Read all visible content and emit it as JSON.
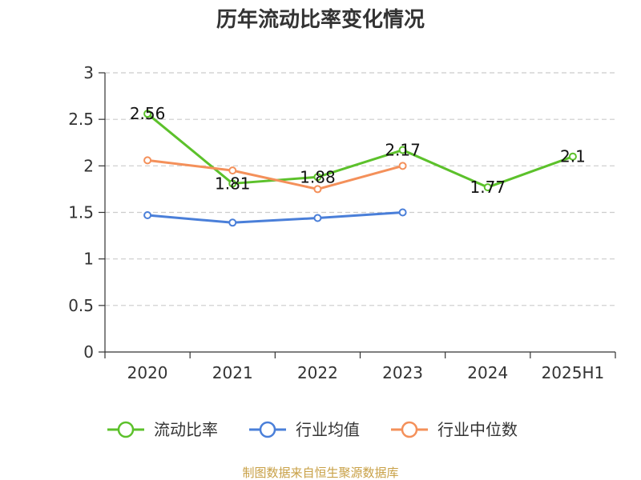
{
  "chart_data": {
    "type": "line",
    "title": "历年流动比率变化情况",
    "categories": [
      "2020",
      "2021",
      "2022",
      "2023",
      "2024",
      "2025H1"
    ],
    "ylim": [
      0,
      3
    ],
    "yticks": [
      "0",
      "0.5",
      "1",
      "1.5",
      "2",
      "2.5",
      "3"
    ],
    "grid": true,
    "legend_position": "bottom",
    "series": [
      {
        "name": "流动比率",
        "color": "#5cc12b",
        "values": [
          2.56,
          1.81,
          1.88,
          2.17,
          1.77,
          2.1
        ],
        "labels": [
          "2.56",
          "1.81",
          "1.88",
          "2.17",
          "1.77",
          "2.1"
        ]
      },
      {
        "name": "行业均值",
        "color": "#4a7fd9",
        "values": [
          1.47,
          1.39,
          1.44,
          1.5,
          null,
          null
        ]
      },
      {
        "name": "行业中位数",
        "color": "#f4905a",
        "values": [
          2.06,
          1.95,
          1.75,
          2.0,
          null,
          null
        ]
      }
    ]
  },
  "source_note": "制图数据来自恒生聚源数据库"
}
